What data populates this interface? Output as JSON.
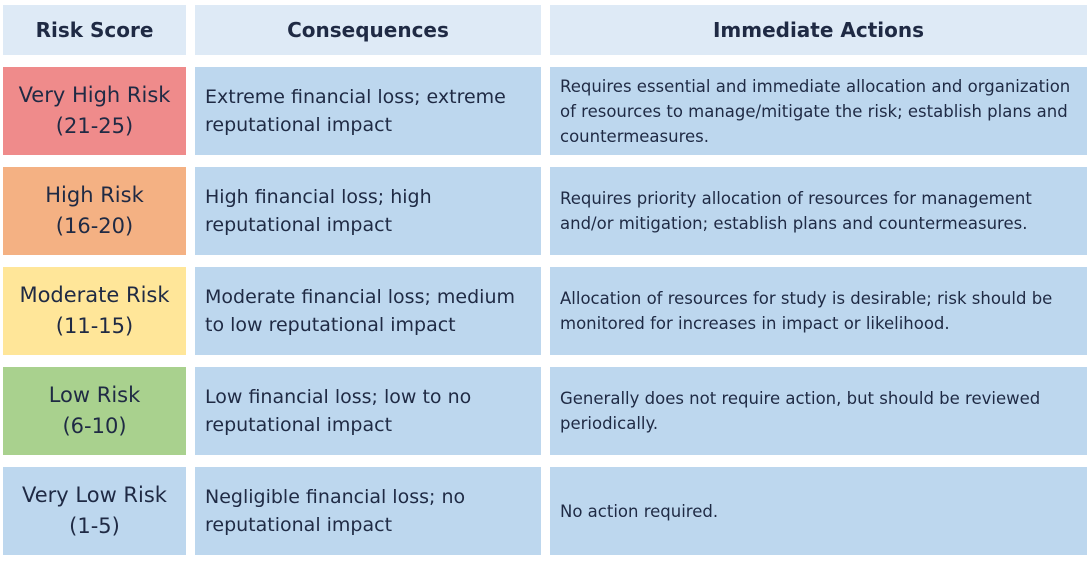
{
  "headers": {
    "risk_score": "Risk Score",
    "consequences": "Consequences",
    "immediate_actions": "Immediate Actions"
  },
  "rows": [
    {
      "level": "Very High Risk",
      "range": "(21-25)",
      "color": "#ef8b8b",
      "consequences": "Extreme financial loss; extreme reputational impact",
      "actions": "Requires essential and immediate allocation and organization of resources to manage/mitigate the risk; establish plans and countermeasures."
    },
    {
      "level": "High Risk",
      "range": "(16-20)",
      "color": "#f4b183",
      "consequences": "High financial loss; high reputational impact",
      "actions": "Requires priority allocation of resources for management and/or mitigation; establish plans and countermeasures."
    },
    {
      "level": "Moderate Risk",
      "range": "(11-15)",
      "color": "#ffe699",
      "consequences": "Moderate financial loss; medium to low reputational impact",
      "actions": "Allocation of resources for study is desirable; risk should be monitored for increases in impact or likelihood."
    },
    {
      "level": "Low Risk",
      "range": "(6-10)",
      "color": "#a9d18e",
      "consequences": "Low financial loss; low to no reputational impact",
      "actions": "Generally does not require action, but should be reviewed periodically."
    },
    {
      "level": "Very Low Risk",
      "range": "(1-5)",
      "color": "#bdd7ee",
      "consequences": "Negligible financial loss; no reputational impact",
      "actions": "No action required."
    }
  ]
}
